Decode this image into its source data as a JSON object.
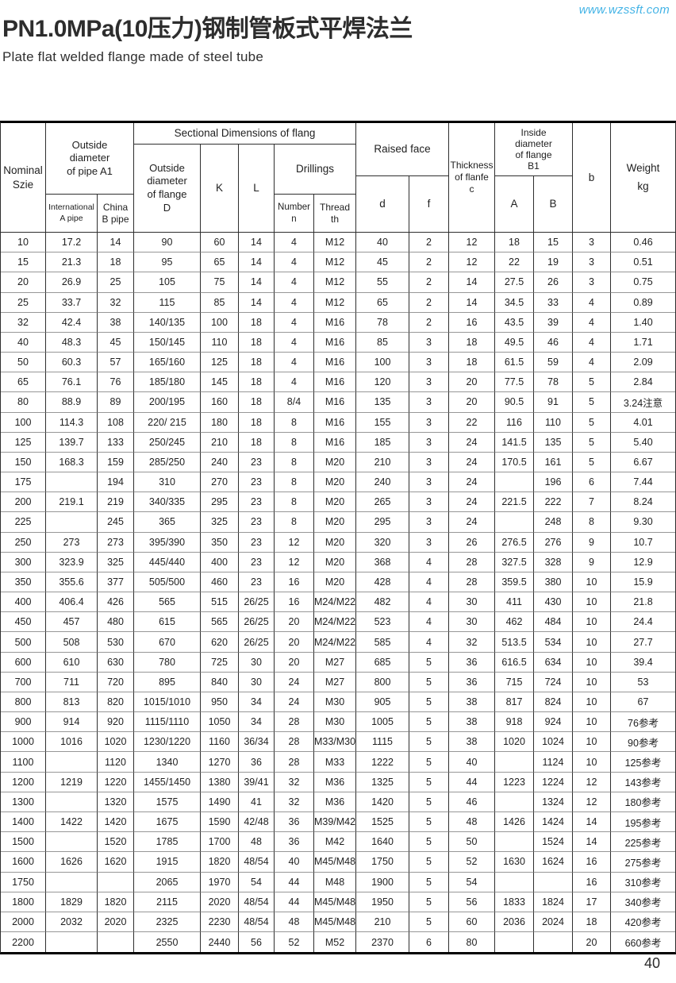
{
  "page": {
    "site_url": "www.wzssft.com",
    "title": "PN1.0MPa(10压力)钢制管板式平焊法兰",
    "subtitle": "Plate flat welded flange made of steel tube",
    "page_number": "40"
  },
  "table": {
    "header": {
      "nominal": "Nominal\nSzie",
      "pipe_a1": "Outside\ndiameter\nof pipe A1",
      "intl_a": "International\nA pipe",
      "china_b": "China\nB pipe",
      "sectional": "Sectional Dimensions of flang",
      "flange_d": "Outside\ndiameter\nof flange\nD",
      "k": "K",
      "l": "L",
      "drillings": "Drillings",
      "number_n": "Number\nn",
      "thread_th": "Thread\nth",
      "raised_face": "Raised face",
      "d": "d",
      "f": "f",
      "thickness": "Thickness\nof flanfe\nc",
      "inside_b1": "Inside\ndiameter\nof flange\nB1",
      "a": "A",
      "b_cap": "B",
      "b": "b",
      "weight": "Weight\nkg"
    },
    "rows": [
      [
        "10",
        "17.2",
        "14",
        "90",
        "60",
        "14",
        "4",
        "M12",
        "40",
        "2",
        "12",
        "18",
        "15",
        "3",
        "0.46"
      ],
      [
        "15",
        "21.3",
        "18",
        "95",
        "65",
        "14",
        "4",
        "M12",
        "45",
        "2",
        "12",
        "22",
        "19",
        "3",
        "0.51"
      ],
      [
        "20",
        "26.9",
        "25",
        "105",
        "75",
        "14",
        "4",
        "M12",
        "55",
        "2",
        "14",
        "27.5",
        "26",
        "3",
        "0.75"
      ],
      [
        "25",
        "33.7",
        "32",
        "115",
        "85",
        "14",
        "4",
        "M12",
        "65",
        "2",
        "14",
        "34.5",
        "33",
        "4",
        "0.89"
      ],
      [
        "32",
        "42.4",
        "38",
        "140/135",
        "100",
        "18",
        "4",
        "M16",
        "78",
        "2",
        "16",
        "43.5",
        "39",
        "4",
        "1.40"
      ],
      [
        "40",
        "48.3",
        "45",
        "150/145",
        "110",
        "18",
        "4",
        "M16",
        "85",
        "3",
        "18",
        "49.5",
        "46",
        "4",
        "1.71"
      ],
      [
        "50",
        "60.3",
        "57",
        "165/160",
        "125",
        "18",
        "4",
        "M16",
        "100",
        "3",
        "18",
        "61.5",
        "59",
        "4",
        "2.09"
      ],
      [
        "65",
        "76.1",
        "76",
        "185/180",
        "145",
        "18",
        "4",
        "M16",
        "120",
        "3",
        "20",
        "77.5",
        "78",
        "5",
        "2.84"
      ],
      [
        "80",
        "88.9",
        "89",
        "200/195",
        "160",
        "18",
        "8/4",
        "M16",
        "135",
        "3",
        "20",
        "90.5",
        "91",
        "5",
        "3.24注意"
      ],
      [
        "100",
        "114.3",
        "108",
        "220/ 215",
        "180",
        "18",
        "8",
        "M16",
        "155",
        "3",
        "22",
        "116",
        "110",
        "5",
        "4.01"
      ],
      [
        "125",
        "139.7",
        "133",
        "250/245",
        "210",
        "18",
        "8",
        "M16",
        "185",
        "3",
        "24",
        "141.5",
        "135",
        "5",
        "5.40"
      ],
      [
        "150",
        "168.3",
        "159",
        "285/250",
        "240",
        "23",
        "8",
        "M20",
        "210",
        "3",
        "24",
        "170.5",
        "161",
        "5",
        "6.67"
      ],
      [
        "175",
        "",
        "194",
        "310",
        "270",
        "23",
        "8",
        "M20",
        "240",
        "3",
        "24",
        "",
        "196",
        "6",
        "7.44"
      ],
      [
        "200",
        "219.1",
        "219",
        "340/335",
        "295",
        "23",
        "8",
        "M20",
        "265",
        "3",
        "24",
        "221.5",
        "222",
        "7",
        "8.24"
      ],
      [
        "225",
        "",
        "245",
        "365",
        "325",
        "23",
        "8",
        "M20",
        "295",
        "3",
        "24",
        "",
        "248",
        "8",
        "9.30"
      ],
      [
        "250",
        "273",
        "273",
        "395/390",
        "350",
        "23",
        "12",
        "M20",
        "320",
        "3",
        "26",
        "276.5",
        "276",
        "9",
        "10.7"
      ],
      [
        "300",
        "323.9",
        "325",
        "445/440",
        "400",
        "23",
        "12",
        "M20",
        "368",
        "4",
        "28",
        "327.5",
        "328",
        "9",
        "12.9"
      ],
      [
        "350",
        "355.6",
        "377",
        "505/500",
        "460",
        "23",
        "16",
        "M20",
        "428",
        "4",
        "28",
        "359.5",
        "380",
        "10",
        "15.9"
      ],
      [
        "400",
        "406.4",
        "426",
        "565",
        "515",
        "26/25",
        "16",
        "M24/M22",
        "482",
        "4",
        "30",
        "411",
        "430",
        "10",
        "21.8"
      ],
      [
        "450",
        "457",
        "480",
        "615",
        "565",
        "26/25",
        "20",
        "M24/M22",
        "523",
        "4",
        "30",
        "462",
        "484",
        "10",
        "24.4"
      ],
      [
        "500",
        "508",
        "530",
        "670",
        "620",
        "26/25",
        "20",
        "M24/M22",
        "585",
        "4",
        "32",
        "513.5",
        "534",
        "10",
        "27.7"
      ],
      [
        "600",
        "610",
        "630",
        "780",
        "725",
        "30",
        "20",
        "M27",
        "685",
        "5",
        "36",
        "616.5",
        "634",
        "10",
        "39.4"
      ],
      [
        "700",
        "711",
        "720",
        "895",
        "840",
        "30",
        "24",
        "M27",
        "800",
        "5",
        "36",
        "715",
        "724",
        "10",
        "53"
      ],
      [
        "800",
        "813",
        "820",
        "1015/1010",
        "950",
        "34",
        "24",
        "M30",
        "905",
        "5",
        "38",
        "817",
        "824",
        "10",
        "67"
      ],
      [
        "900",
        "914",
        "920",
        "1115/1110",
        "1050",
        "34",
        "28",
        "M30",
        "1005",
        "5",
        "38",
        "918",
        "924",
        "10",
        "76参考"
      ],
      [
        "1000",
        "1016",
        "1020",
        "1230/1220",
        "1160",
        "36/34",
        "28",
        "M33/M30",
        "1115",
        "5",
        "38",
        "1020",
        "1024",
        "10",
        "90参考"
      ],
      [
        "1100",
        "",
        "1120",
        "1340",
        "1270",
        "36",
        "28",
        "M33",
        "1222",
        "5",
        "40",
        "",
        "1124",
        "10",
        "125参考"
      ],
      [
        "1200",
        "1219",
        "1220",
        "1455/1450",
        "1380",
        "39/41",
        "32",
        "M36",
        "1325",
        "5",
        "44",
        "1223",
        "1224",
        "12",
        "143参考"
      ],
      [
        "1300",
        "",
        "1320",
        "1575",
        "1490",
        "41",
        "32",
        "M36",
        "1420",
        "5",
        "46",
        "",
        "1324",
        "12",
        "180参考"
      ],
      [
        "1400",
        "1422",
        "1420",
        "1675",
        "1590",
        "42/48",
        "36",
        "M39/M42",
        "1525",
        "5",
        "48",
        "1426",
        "1424",
        "14",
        "195参考"
      ],
      [
        "1500",
        "",
        "1520",
        "1785",
        "1700",
        "48",
        "36",
        "M42",
        "1640",
        "5",
        "50",
        "",
        "1524",
        "14",
        "225参考"
      ],
      [
        "1600",
        "1626",
        "1620",
        "1915",
        "1820",
        "48/54",
        "40",
        "M45/M48",
        "1750",
        "5",
        "52",
        "1630",
        "1624",
        "16",
        "275参考"
      ],
      [
        "1750",
        "",
        "",
        "2065",
        "1970",
        "54",
        "44",
        "M48",
        "1900",
        "5",
        "54",
        "",
        "",
        "16",
        "310参考"
      ],
      [
        "1800",
        "1829",
        "1820",
        "2115",
        "2020",
        "48/54",
        "44",
        "M45/M48",
        "1950",
        "5",
        "56",
        "1833",
        "1824",
        "17",
        "340参考"
      ],
      [
        "2000",
        "2032",
        "2020",
        "2325",
        "2230",
        "48/54",
        "48",
        "M45/M48",
        "210",
        "5",
        "60",
        "2036",
        "2024",
        "18",
        "420参考"
      ],
      [
        "2200",
        "",
        "",
        "2550",
        "2440",
        "56",
        "52",
        "M52",
        "2370",
        "6",
        "80",
        "",
        "",
        "20",
        "660参考"
      ]
    ]
  }
}
